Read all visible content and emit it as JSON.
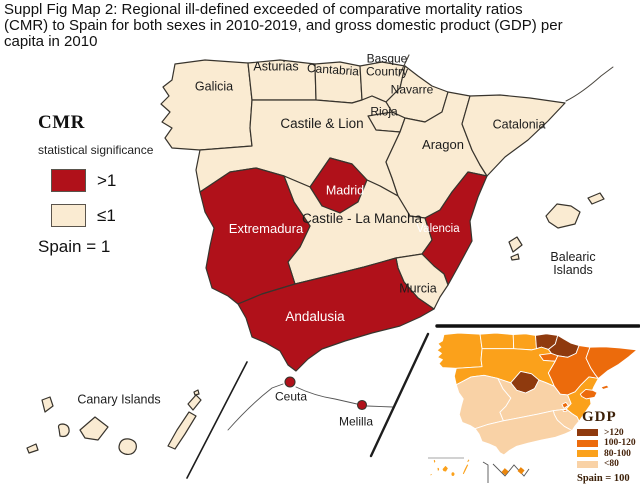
{
  "header": {
    "lines": [
      "Suppl Fig Map 2: Regional ill-defined exceeded of comparative mortality ratios",
      "(CMR) to Spain for both sexes in 2010-2019, and gross domestic product (GDP) per",
      "capita in 2010"
    ]
  },
  "cmr_legend": {
    "title": "CMR",
    "subtitle": "statistical significance",
    "items": [
      {
        "key": "gt1",
        "label": ">1",
        "color": "#b0111a"
      },
      {
        "key": "le1",
        "label": "≤1",
        "color": "#faebd2"
      }
    ],
    "note": "Spain = 1"
  },
  "gdp_legend": {
    "title": "GDP",
    "items": [
      {
        "key": "gt120",
        "label": ">120",
        "color": "#8f3a0e"
      },
      {
        "key": "b100_120",
        "label": "100-120",
        "color": "#ec6b0c"
      },
      {
        "key": "b80_100",
        "label": "80-100",
        "color": "#fba11b"
      },
      {
        "key": "lt80",
        "label": "<80",
        "color": "#f9d2a6"
      }
    ],
    "note": "Spain = 100"
  },
  "regions": [
    {
      "id": "galicia",
      "label": "Galicia",
      "cmr": "le1",
      "gdp": "b80_100"
    },
    {
      "id": "asturias",
      "label": "Asturias",
      "cmr": "le1",
      "gdp": "b80_100"
    },
    {
      "id": "cantabria",
      "label": "Cantabria",
      "cmr": "le1",
      "gdp": "b80_100"
    },
    {
      "id": "basque",
      "label": "Basque Country",
      "cmr": "le1",
      "gdp": "gt120"
    },
    {
      "id": "navarre",
      "label": "Navarre",
      "cmr": "le1",
      "gdp": "gt120"
    },
    {
      "id": "rioja",
      "label": "Rioja",
      "cmr": "le1",
      "gdp": "b100_120"
    },
    {
      "id": "castile_leon",
      "label": "Castile & Lion",
      "cmr": "le1",
      "gdp": "b80_100"
    },
    {
      "id": "aragon",
      "label": "Aragon",
      "cmr": "le1",
      "gdp": "b100_120"
    },
    {
      "id": "catalonia",
      "label": "Catalonia",
      "cmr": "le1",
      "gdp": "b100_120"
    },
    {
      "id": "madrid",
      "label": "Madrid",
      "cmr": "gt1",
      "gdp": "gt120"
    },
    {
      "id": "clm",
      "label": "Castile - La Mancha",
      "cmr": "le1",
      "gdp": "lt80"
    },
    {
      "id": "valencia",
      "label": "Valencia",
      "cmr": "gt1",
      "gdp": "b80_100"
    },
    {
      "id": "extremadura",
      "label": "Extremadura",
      "cmr": "gt1",
      "gdp": "lt80"
    },
    {
      "id": "murcia",
      "label": "Murcia",
      "cmr": "le1",
      "gdp": "lt80"
    },
    {
      "id": "andalusia",
      "label": "Andalusia",
      "cmr": "gt1",
      "gdp": "lt80"
    },
    {
      "id": "balearic",
      "label": "Balearic Islands",
      "cmr": "le1",
      "gdp": "b100_120"
    },
    {
      "id": "canary",
      "label": "Canary Islands",
      "cmr": "le1",
      "gdp": "b80_100"
    },
    {
      "id": "ceuta",
      "label": "Ceuta",
      "cmr": "gt1"
    },
    {
      "id": "melilla",
      "label": "Melilla",
      "cmr": "gt1"
    }
  ]
}
